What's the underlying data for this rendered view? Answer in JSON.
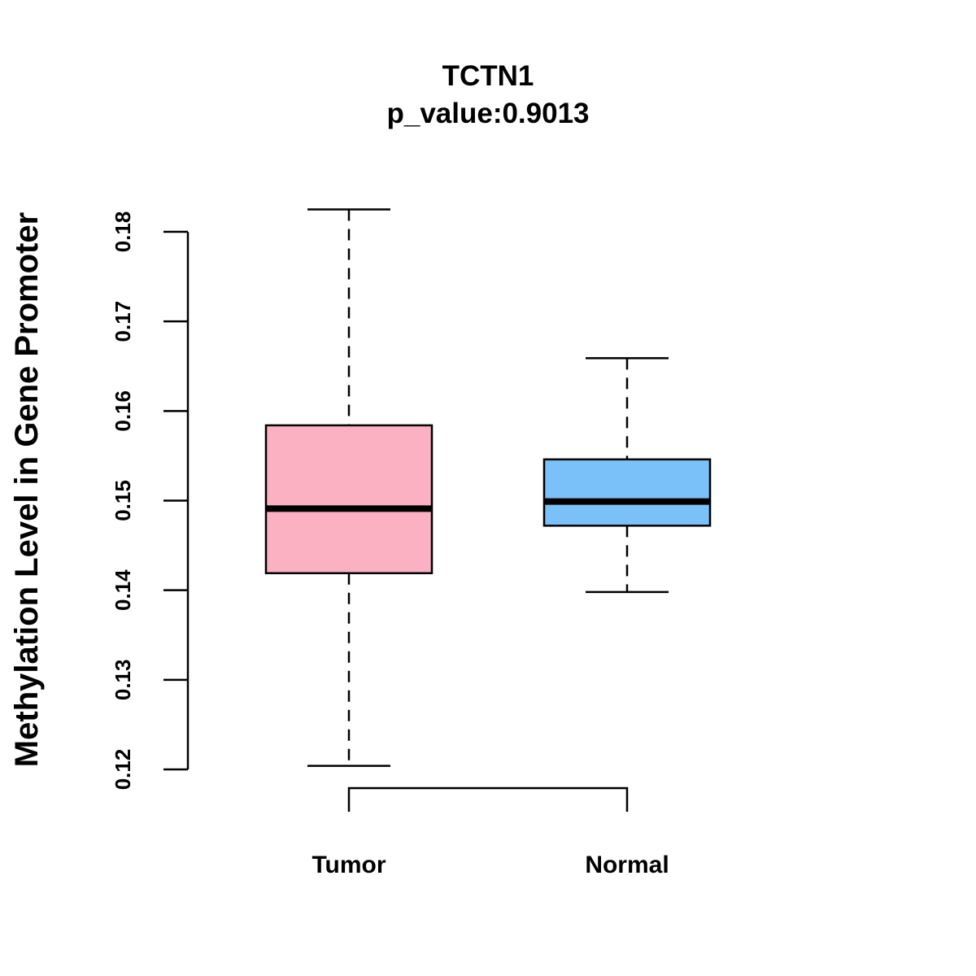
{
  "chart_data": {
    "type": "boxplot",
    "title": "TCTN1",
    "subtitle": "p_value:0.9013",
    "xlabel": "",
    "ylabel": "Methylation Level in Gene Promoter",
    "ylim": [
      0.12,
      0.18
    ],
    "yticks": [
      0.12,
      0.13,
      0.14,
      0.15,
      0.16,
      0.17,
      0.18
    ],
    "ytick_labels": [
      "0.12",
      "0.13",
      "0.14",
      "0.15",
      "0.16",
      "0.17",
      "0.18"
    ],
    "categories": [
      "Tumor",
      "Normal"
    ],
    "boxes": [
      {
        "name": "Tumor",
        "whisker_low": 0.1204,
        "q1": 0.1419,
        "median": 0.1491,
        "q3": 0.1584,
        "whisker_high": 0.1825,
        "color": "#FBB1C2"
      },
      {
        "name": "Normal",
        "whisker_low": 0.1398,
        "q1": 0.1472,
        "median": 0.1499,
        "q3": 0.1546,
        "whisker_high": 0.1659,
        "color": "#79C1F8"
      }
    ],
    "significance_bracket": {
      "between": [
        "Tumor",
        "Normal"
      ],
      "label": ""
    }
  }
}
